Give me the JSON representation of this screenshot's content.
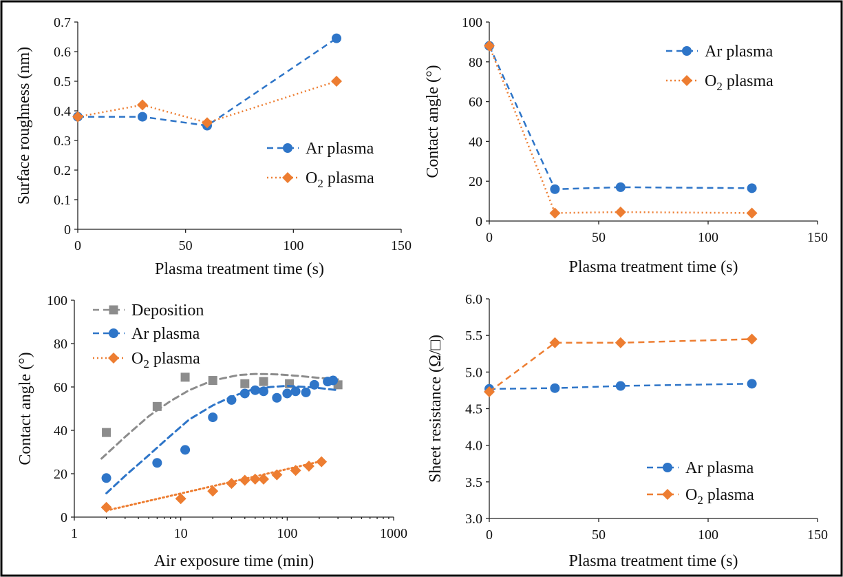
{
  "chart_data": [
    {
      "type": "line",
      "title": "",
      "xlabel": "Plasma treatment time (s)",
      "ylabel": "Surface roughness (nm)",
      "xlim": [
        0,
        150
      ],
      "ylim": [
        0,
        0.7
      ],
      "xticks": [
        "0",
        "50",
        "100",
        "150"
      ],
      "yticks": [
        "0",
        "0.1",
        "0.2",
        "0.3",
        "0.4",
        "0.5",
        "0.6",
        "0.7"
      ],
      "legend_position": "right",
      "series": [
        {
          "name": "Ar plasma",
          "color": "#2e75c8",
          "marker": "circle",
          "dash": "dashed",
          "x": [
            0,
            30,
            60,
            120
          ],
          "y": [
            0.38,
            0.38,
            0.35,
            0.645
          ]
        },
        {
          "name": "O2 plasma",
          "color": "#ed7d31",
          "marker": "diamond",
          "dash": "dotted",
          "x": [
            0,
            30,
            60,
            120
          ],
          "y": [
            0.38,
            0.42,
            0.36,
            0.5
          ]
        }
      ]
    },
    {
      "type": "line",
      "title": "",
      "xlabel": "Plasma treatment time (s)",
      "ylabel": "Contact angle (°)",
      "xlim": [
        0,
        150
      ],
      "ylim": [
        0,
        100
      ],
      "xticks": [
        "0",
        "50",
        "100",
        "150"
      ],
      "yticks": [
        "0",
        "20",
        "40",
        "60",
        "80",
        "100"
      ],
      "legend_position": "top-right",
      "series": [
        {
          "name": "Ar plasma",
          "color": "#2e75c8",
          "marker": "circle",
          "dash": "dashed",
          "x": [
            0,
            30,
            60,
            120
          ],
          "y": [
            88,
            16,
            17,
            16.5
          ]
        },
        {
          "name": "O2 plasma",
          "color": "#ed7d31",
          "marker": "diamond",
          "dash": "dotted",
          "x": [
            0,
            30,
            60,
            120
          ],
          "y": [
            88,
            4,
            4.5,
            4
          ]
        }
      ]
    },
    {
      "type": "scatter",
      "title": "",
      "xlabel": "Air exposure time (min)",
      "ylabel": "Contact angle (°)",
      "xscale": "log",
      "xlim": [
        1,
        1000
      ],
      "ylim": [
        0,
        100
      ],
      "xticks": [
        "1",
        "10",
        "100",
        "1000"
      ],
      "yticks": [
        "0",
        "20",
        "40",
        "60",
        "80",
        "100"
      ],
      "legend_position": "top-left",
      "series": [
        {
          "name": "Deposition",
          "color": "#8c8c8c",
          "marker": "square",
          "x": [
            2,
            6,
            11,
            20,
            40,
            60,
            105,
            300
          ],
          "y": [
            39,
            51,
            64.5,
            63,
            61.5,
            62.5,
            61.5,
            61
          ],
          "trend": {
            "dash": "dashed",
            "x": [
              1.8,
              3,
              5,
              8,
              12,
              20,
              35,
              50,
              80,
              120,
              200,
              300
            ],
            "y": [
              27,
              37,
              46.5,
              53.5,
              58.5,
              63,
              65.5,
              66,
              65.8,
              65.2,
              64.2,
              63.5
            ]
          }
        },
        {
          "name": "Ar plasma",
          "color": "#2e75c8",
          "marker": "circle",
          "x": [
            2,
            6,
            11,
            20,
            30,
            40,
            50,
            60,
            80,
            100,
            120,
            150,
            180,
            240,
            270
          ],
          "y": [
            18,
            25,
            31,
            46,
            54,
            57,
            58.5,
            58,
            55,
            57,
            58,
            57.5,
            61,
            62.5,
            63
          ],
          "trend": {
            "dash": "dashed",
            "x": [
              2,
              3,
              5,
              8,
              12,
              20,
              30,
              45,
              70,
              100,
              150,
              200,
              300
            ],
            "y": [
              11,
              19,
              28.5,
              37.5,
              45,
              51.5,
              55.5,
              58.5,
              60,
              60.5,
              60,
              59.5,
              58.5
            ]
          }
        },
        {
          "name": "O2 plasma",
          "color": "#ed7d31",
          "marker": "diamond",
          "x": [
            2,
            10,
            20,
            30,
            40,
            50,
            60,
            80,
            120,
            160,
            210
          ],
          "y": [
            4.5,
            8.5,
            12,
            15.5,
            17,
            17.5,
            17.5,
            19.5,
            21.5,
            23.5,
            25.5
          ],
          "trend": {
            "dash": "dotted",
            "x": [
              2,
              220
            ],
            "y": [
              3,
              26
            ]
          }
        }
      ]
    },
    {
      "type": "line",
      "title": "",
      "xlabel": "Plasma treatment time (s)",
      "ylabel": "Sheet resistance (Ω/□)",
      "xlim": [
        0,
        150
      ],
      "ylim": [
        3.0,
        6.0
      ],
      "xticks": [
        "0",
        "50",
        "100",
        "150"
      ],
      "yticks": [
        "3.0",
        "3.5",
        "4.0",
        "4.5",
        "5.0",
        "5.5",
        "6.0"
      ],
      "legend_position": "bottom-right",
      "series": [
        {
          "name": "Ar plasma",
          "color": "#2e75c8",
          "marker": "circle",
          "dash": "dashed",
          "x": [
            0,
            30,
            60,
            120
          ],
          "y": [
            4.77,
            4.78,
            4.81,
            4.84
          ]
        },
        {
          "name": "O2 plasma",
          "color": "#ed7d31",
          "marker": "diamond",
          "dash": "dashed",
          "x": [
            0,
            30,
            60,
            120
          ],
          "y": [
            4.73,
            5.4,
            5.4,
            5.45
          ]
        }
      ]
    }
  ]
}
